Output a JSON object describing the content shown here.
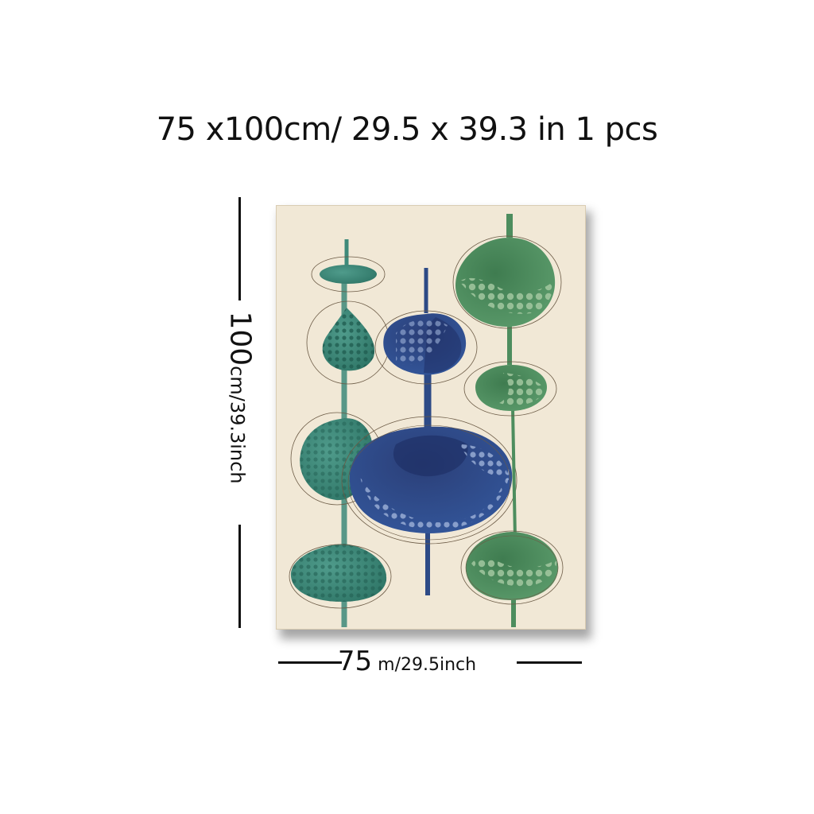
{
  "title": "75 x100cm/ 29.5 x 39.3 in 1 pcs",
  "height_label": {
    "value": "100",
    "unit": "cm/39.3inch"
  },
  "width_label": {
    "value": "75",
    "unit": " m/29.5inch"
  },
  "colors": {
    "canvas_bg": "#f1e8d6",
    "teal": "#3e8a7a",
    "navy": "#2d4a86",
    "green": "#4d8d5e"
  }
}
